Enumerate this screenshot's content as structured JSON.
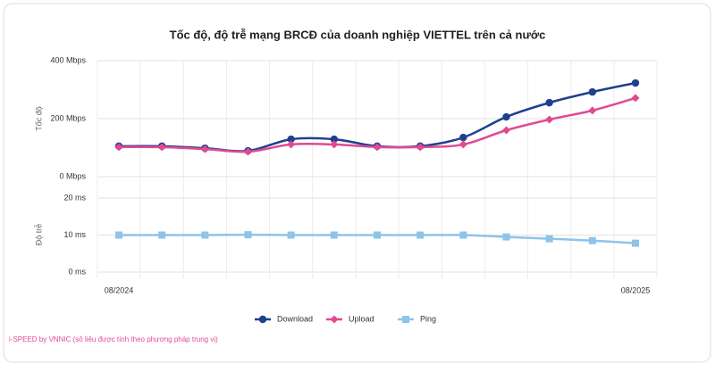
{
  "chart_data": {
    "type": "line",
    "title": "Tốc độ, độ trễ mạng BRCĐ của doanh nghiệp VIETTEL trên cả nước",
    "categories": [
      "08/2024",
      null,
      null,
      null,
      null,
      null,
      null,
      null,
      null,
      null,
      null,
      null,
      "08/2025"
    ],
    "ylabel": "Tốc độ",
    "ylim": [
      0,
      400
    ],
    "yticks": [
      {
        "value": 0,
        "label": "0 Mbps"
      },
      {
        "value": 200,
        "label": "200 Mbps"
      },
      {
        "value": 400,
        "label": "400 Mbps"
      }
    ],
    "y2label": "Độ trễ",
    "y2lim": [
      0,
      20
    ],
    "y2ticks": [
      {
        "value": 0,
        "label": "0 ms"
      },
      {
        "value": 10,
        "label": "10 ms"
      },
      {
        "value": 20,
        "label": "20 ms"
      }
    ],
    "grid": true,
    "legend": "bottom",
    "series": [
      {
        "name": "Download",
        "color": "#1f3f8f",
        "marker": "circle",
        "values": [
          105,
          105,
          98,
          89,
          129,
          129,
          105,
          105,
          135,
          206,
          255,
          292,
          323
        ]
      },
      {
        "name": "Upload",
        "color": "#e04a92",
        "marker": "diamond",
        "values": [
          102,
          102,
          95,
          86,
          111,
          111,
          102,
          102,
          111,
          160,
          197,
          228,
          271
        ]
      },
      {
        "name": "Ping",
        "color": "#8ec3ea",
        "marker": "square",
        "axis": "y2",
        "values": [
          10,
          10,
          10,
          10.1,
          10,
          10,
          10,
          10,
          10,
          9.5,
          9,
          8.5,
          7.8
        ]
      }
    ],
    "source": "i-SPEED by VNNIC (số liệu được tính theo phương pháp trung vị)"
  }
}
